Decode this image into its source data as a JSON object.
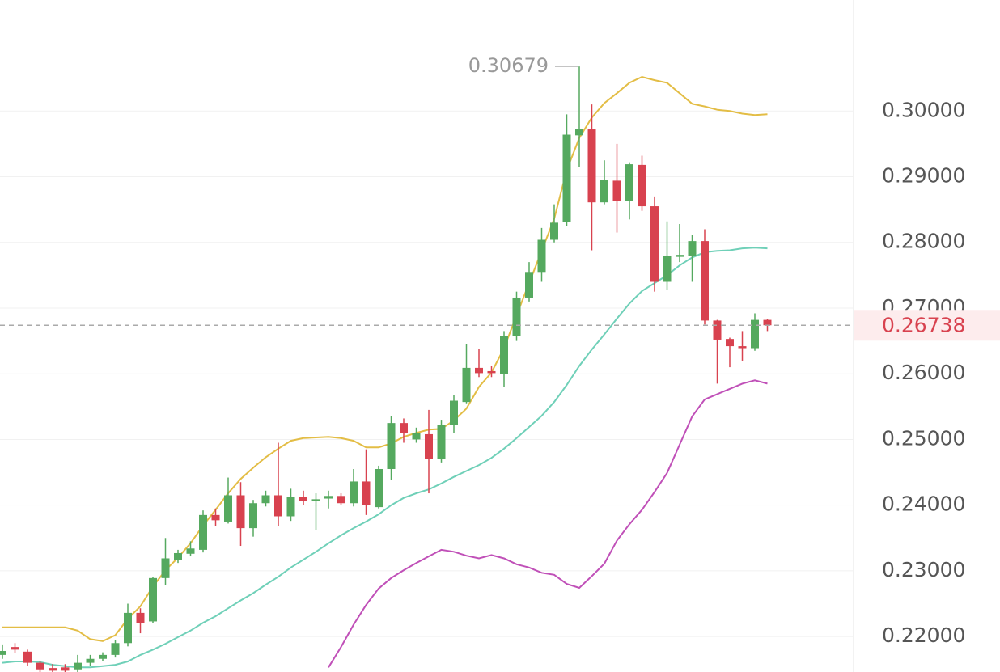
{
  "chart_data": {
    "type": "candlestick",
    "open": [
      0.2172,
      0.2184,
      0.2177,
      0.216,
      0.2152,
      0.2153,
      0.215,
      0.216,
      0.2166,
      0.2172,
      0.219,
      0.2236,
      0.2223,
      0.2289,
      0.2317,
      0.2326,
      0.2332,
      0.2385,
      0.2375,
      0.2415,
      0.2365,
      0.2403,
      0.2415,
      0.2383,
      0.2412,
      0.2407,
      0.241,
      0.2414,
      0.2403,
      0.2436,
      0.2397,
      0.2455,
      0.2525,
      0.25,
      0.2508,
      0.247,
      0.2522,
      0.2557,
      0.2609,
      0.2604,
      0.26,
      0.2658,
      0.2716,
      0.2755,
      0.2804,
      0.2831,
      0.2963,
      0.2972,
      0.2861,
      0.2894,
      0.2863,
      0.2918,
      0.2855,
      0.274,
      0.2778,
      0.278,
      0.2802,
      0.2681,
      0.2653,
      0.2642,
      0.2639,
      0.2682
    ],
    "high": [
      0.2188,
      0.219,
      0.218,
      0.2163,
      0.2158,
      0.2158,
      0.2172,
      0.2172,
      0.2176,
      0.2194,
      0.225,
      0.2243,
      0.2291,
      0.235,
      0.2332,
      0.2345,
      0.2392,
      0.2395,
      0.2442,
      0.2435,
      0.2408,
      0.2422,
      0.2495,
      0.2425,
      0.2422,
      0.2418,
      0.2422,
      0.2418,
      0.2455,
      0.2485,
      0.246,
      0.2535,
      0.2532,
      0.2518,
      0.2545,
      0.253,
      0.2568,
      0.2645,
      0.2638,
      0.2612,
      0.2665,
      0.2725,
      0.277,
      0.2822,
      0.2858,
      0.2995,
      0.30679,
      0.301,
      0.2925,
      0.295,
      0.2922,
      0.2932,
      0.287,
      0.2832,
      0.2828,
      0.2812,
      0.282,
      0.2682,
      0.2655,
      0.2665,
      0.2692,
      0.2683
    ],
    "low": [
      0.2166,
      0.2175,
      0.2155,
      0.2146,
      0.2146,
      0.2146,
      0.2146,
      0.2155,
      0.2162,
      0.2168,
      0.2185,
      0.2205,
      0.222,
      0.2278,
      0.2312,
      0.2322,
      0.2328,
      0.2368,
      0.2372,
      0.2338,
      0.2352,
      0.2398,
      0.2368,
      0.2376,
      0.24,
      0.2362,
      0.2395,
      0.24,
      0.2398,
      0.2385,
      0.2395,
      0.2438,
      0.2495,
      0.2495,
      0.2418,
      0.2465,
      0.251,
      0.2555,
      0.2595,
      0.2595,
      0.258,
      0.265,
      0.271,
      0.274,
      0.28,
      0.2825,
      0.2915,
      0.2788,
      0.2858,
      0.2815,
      0.2835,
      0.2848,
      0.2725,
      0.2728,
      0.277,
      0.274,
      0.2675,
      0.2585,
      0.261,
      0.262,
      0.2635,
      0.2665
    ],
    "close": [
      0.2178,
      0.218,
      0.216,
      0.215,
      0.2148,
      0.2148,
      0.216,
      0.2166,
      0.2172,
      0.219,
      0.2236,
      0.2221,
      0.2289,
      0.2319,
      0.2327,
      0.2334,
      0.2385,
      0.2377,
      0.2415,
      0.2365,
      0.2403,
      0.2415,
      0.2383,
      0.2412,
      0.2406,
      0.2409,
      0.2414,
      0.2403,
      0.2436,
      0.24,
      0.2455,
      0.2525,
      0.251,
      0.251,
      0.247,
      0.2522,
      0.2559,
      0.2609,
      0.2601,
      0.2601,
      0.2658,
      0.2716,
      0.2755,
      0.2804,
      0.283,
      0.2964,
      0.2972,
      0.2861,
      0.2895,
      0.2863,
      0.2919,
      0.2855,
      0.274,
      0.278,
      0.2781,
      0.2802,
      0.2681,
      0.2652,
      0.2642,
      0.2639,
      0.2682,
      0.26738
    ],
    "up_color": "#55a95f",
    "down_color": "#d8424f",
    "series": [
      {
        "color": "#e3bd45",
        "values": [
          0.2214,
          0.2214,
          0.2214,
          0.2214,
          0.2214,
          0.2214,
          0.2209,
          0.2196,
          0.2193,
          0.2202,
          0.2227,
          0.2246,
          0.2276,
          0.2301,
          0.232,
          0.2342,
          0.2369,
          0.2393,
          0.2418,
          0.244,
          0.2457,
          0.2473,
          0.2486,
          0.2498,
          0.2502,
          0.2503,
          0.2504,
          0.2502,
          0.2498,
          0.2488,
          0.2488,
          0.2494,
          0.2504,
          0.251,
          0.2515,
          0.2516,
          0.2529,
          0.2547,
          0.258,
          0.2602,
          0.2639,
          0.2689,
          0.2738,
          0.2787,
          0.2836,
          0.291,
          0.2959,
          0.299,
          0.3012,
          0.3027,
          0.3043,
          0.3052,
          0.3047,
          0.3043,
          0.3027,
          0.3011,
          0.3007,
          0.3002,
          0.3,
          0.2996,
          0.2994,
          0.2995
        ]
      },
      {
        "color": "#6fd0b8",
        "values": [
          0.216,
          0.2162,
          0.2162,
          0.2161,
          0.2157,
          0.2155,
          0.2153,
          0.2153,
          0.2155,
          0.2157,
          0.2162,
          0.2172,
          0.218,
          0.2189,
          0.2199,
          0.2209,
          0.2221,
          0.2231,
          0.2243,
          0.2255,
          0.2266,
          0.2279,
          0.2291,
          0.2305,
          0.2317,
          0.2329,
          0.2342,
          0.2354,
          0.2365,
          0.2375,
          0.2386,
          0.24,
          0.2411,
          0.2418,
          0.2424,
          0.2433,
          0.2443,
          0.2452,
          0.2461,
          0.2472,
          0.2486,
          0.2502,
          0.2519,
          0.2536,
          0.2557,
          0.2583,
          0.2612,
          0.2637,
          0.266,
          0.2684,
          0.2707,
          0.2726,
          0.2738,
          0.275,
          0.2765,
          0.2777,
          0.2785,
          0.2787,
          0.2788,
          0.2791,
          0.2792,
          0.2791
        ]
      },
      {
        "color": "#c050b8",
        "values": [
          null,
          null,
          null,
          null,
          null,
          null,
          null,
          null,
          null,
          null,
          null,
          null,
          null,
          null,
          null,
          null,
          null,
          null,
          null,
          null,
          null,
          null,
          null,
          null,
          null,
          null,
          0.2153,
          0.2184,
          0.2218,
          0.2248,
          0.2273,
          0.2289,
          0.2301,
          0.2312,
          0.2322,
          0.2332,
          0.2329,
          0.2323,
          0.2319,
          0.2324,
          0.2319,
          0.231,
          0.2305,
          0.2297,
          0.2294,
          0.228,
          0.2274,
          0.2292,
          0.2311,
          0.2346,
          0.2371,
          0.2393,
          0.242,
          0.2449,
          0.2492,
          0.2535,
          0.2561,
          0.2569,
          0.2577,
          0.2585,
          0.259,
          0.2585
        ]
      }
    ],
    "ylim": [
      0.2146,
      0.3169
    ],
    "yticks": [
      {
        "value": 0.22,
        "label": "0.22000"
      },
      {
        "value": 0.23,
        "label": "0.23000"
      },
      {
        "value": 0.24,
        "label": "0.24000"
      },
      {
        "value": 0.25,
        "label": "0.25000"
      },
      {
        "value": 0.26,
        "label": "0.26000"
      },
      {
        "value": 0.27,
        "label": "0.27000"
      },
      {
        "value": 0.28,
        "label": "0.28000"
      },
      {
        "value": 0.29,
        "label": "0.29000"
      },
      {
        "value": 0.3,
        "label": "0.30000"
      }
    ],
    "grid": true,
    "last_price": 0.26738,
    "max_price": 0.30679
  }
}
